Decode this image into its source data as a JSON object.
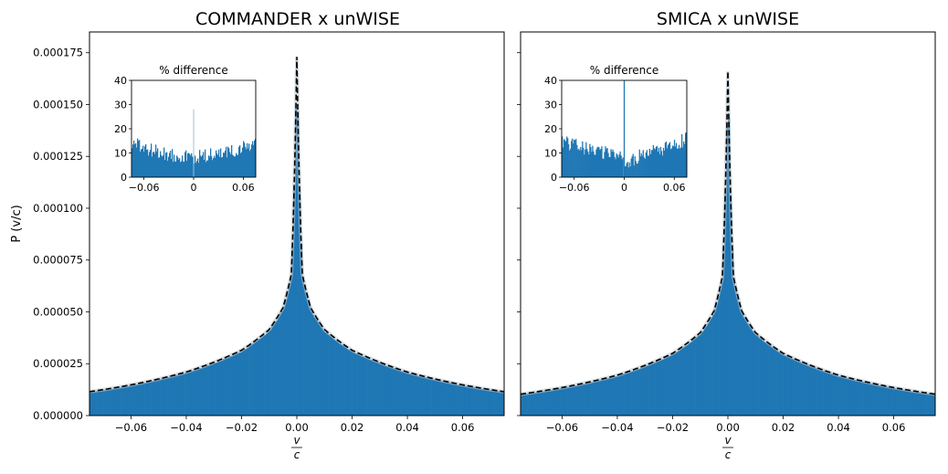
{
  "figure": {
    "ylabel": "P (v/c)",
    "xlabel_num": "v",
    "xlabel_den": "c"
  },
  "colors": {
    "hist": "#1f77b4",
    "model": "#000000",
    "band": "#b8c4cc"
  },
  "chart_data": [
    {
      "type": "area",
      "title": "COMMANDER x unWISE",
      "xlim": [
        -0.075,
        0.075
      ],
      "ylim": [
        0,
        0.000185
      ],
      "xticks": [
        -0.06,
        -0.04,
        -0.02,
        0.0,
        0.02,
        0.04,
        0.06
      ],
      "xtick_labels": [
        "−0.06",
        "−0.04",
        "−0.02",
        "0.00",
        "0.02",
        "0.04",
        "0.06"
      ],
      "yticks": [
        0,
        2.5e-05,
        5e-05,
        7.5e-05,
        0.0001,
        0.000125,
        0.00015,
        0.000175
      ],
      "ytick_labels": [
        "0.000000",
        "0.000025",
        "0.000050",
        "0.000075",
        "0.000100",
        "0.000125",
        "0.000150",
        "0.000175"
      ],
      "show_yticklabels": true,
      "series": [
        {
          "name": "histogram",
          "style": "filled"
        },
        {
          "name": "model",
          "style": "dashed"
        }
      ],
      "x": [
        -0.075,
        -0.06,
        -0.04,
        -0.02,
        -0.01,
        -0.005,
        -0.002,
        0.0,
        0.002,
        0.005,
        0.01,
        0.02,
        0.04,
        0.06,
        0.075
      ],
      "y": [
        1.15e-05,
        1.48e-05,
        2.1e-05,
        3.15e-05,
        4.15e-05,
        5.2e-05,
        6.8e-05,
        0.000173,
        6.8e-05,
        5.2e-05,
        4.15e-05,
        3.15e-05,
        2.1e-05,
        1.48e-05,
        1.15e-05
      ],
      "inset": {
        "type": "bar",
        "title": "% difference",
        "xlim": [
          -0.075,
          0.075
        ],
        "ylim": [
          0,
          40
        ],
        "xticks": [
          -0.06,
          0,
          0.06
        ],
        "xtick_labels": [
          "−0.06",
          "0",
          "0.06"
        ],
        "yticks": [
          0,
          10,
          20,
          30,
          40
        ],
        "ytick_labels": [
          "0",
          "10",
          "20",
          "30",
          "40"
        ],
        "x": [
          -0.075,
          -0.06,
          -0.04,
          -0.02,
          0.0,
          0.02,
          0.04,
          0.06,
          0.075
        ],
        "values": [
          14,
          12,
          10,
          9,
          8,
          9,
          10,
          12,
          14
        ],
        "spike": {
          "x": 0.0,
          "value": 28
        }
      }
    },
    {
      "type": "area",
      "title": "SMICA x unWISE",
      "xlim": [
        -0.075,
        0.075
      ],
      "ylim": [
        0,
        0.000185
      ],
      "xticks": [
        -0.06,
        -0.04,
        -0.02,
        0.0,
        0.02,
        0.04,
        0.06
      ],
      "xtick_labels": [
        "−0.06",
        "−0.04",
        "−0.02",
        "0.00",
        "0.02",
        "0.04",
        "0.06"
      ],
      "yticks": [
        0,
        2.5e-05,
        5e-05,
        7.5e-05,
        0.0001,
        0.000125,
        0.00015,
        0.000175
      ],
      "ytick_labels": [
        "",
        "",
        "",
        "",
        "",
        "",
        "",
        ""
      ],
      "show_yticklabels": false,
      "series": [
        {
          "name": "histogram",
          "style": "filled"
        },
        {
          "name": "model",
          "style": "dashed"
        }
      ],
      "x": [
        -0.075,
        -0.06,
        -0.04,
        -0.02,
        -0.01,
        -0.005,
        -0.002,
        0.0,
        0.002,
        0.005,
        0.01,
        0.02,
        0.04,
        0.06,
        0.075
      ],
      "y": [
        1.03e-05,
        1.35e-05,
        1.95e-05,
        3e-05,
        4e-05,
        5.05e-05,
        6.7e-05,
        0.000166,
        6.7e-05,
        5.05e-05,
        4e-05,
        3e-05,
        1.95e-05,
        1.35e-05,
        1.03e-05
      ],
      "inset": {
        "type": "bar",
        "title": "% difference",
        "xlim": [
          -0.075,
          0.075
        ],
        "ylim": [
          0,
          40
        ],
        "xticks": [
          -0.06,
          0,
          0.06
        ],
        "xtick_labels": [
          "−0.06",
          "0",
          "0.06"
        ],
        "yticks": [
          0,
          10,
          20,
          30,
          40
        ],
        "ytick_labels": [
          "0",
          "10",
          "20",
          "30",
          "40"
        ],
        "x": [
          -0.075,
          -0.06,
          -0.04,
          -0.02,
          -0.002,
          0.0,
          0.002,
          0.02,
          0.04,
          0.06,
          0.075
        ],
        "values": [
          15,
          13,
          11,
          10,
          10,
          0,
          5,
          9,
          11,
          13,
          16
        ],
        "spike": {
          "x": 0.0,
          "value": 40
        }
      }
    }
  ]
}
